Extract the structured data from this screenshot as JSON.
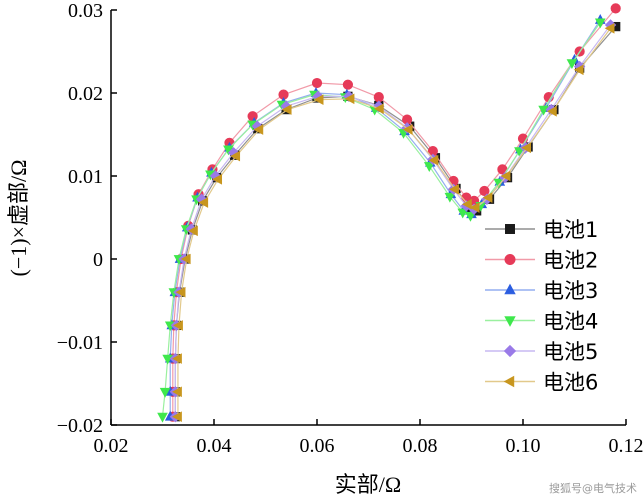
{
  "chart_data": {
    "type": "scatter",
    "title": "",
    "xlabel": "实部/Ω",
    "ylabel": "(−1)×虚部/Ω",
    "xlim": [
      0.02,
      0.12
    ],
    "ylim": [
      -0.02,
      0.03
    ],
    "xticks": [
      "0.02",
      "0.04",
      "0.06",
      "0.08",
      "0.10",
      "0.12"
    ],
    "yticks": [
      "−0.02",
      "−0.01",
      "0",
      "0.01",
      "0.02",
      "0.03"
    ],
    "legend_position": "right",
    "series": [
      {
        "name": "电池1",
        "marker": "square",
        "color": "#1a1a1a",
        "line_color": "#8f8f8f",
        "x": [
          0.0325,
          0.0325,
          0.0325,
          0.0327,
          0.0333,
          0.0344,
          0.0358,
          0.0378,
          0.0405,
          0.044,
          0.0485,
          0.054,
          0.06,
          0.066,
          0.072,
          0.078,
          0.083,
          0.087,
          0.0895,
          0.091,
          0.0935,
          0.097,
          0.101,
          0.106,
          0.111,
          0.118
        ],
        "y": [
          -0.019,
          -0.016,
          -0.012,
          -0.008,
          -0.004,
          0.0,
          0.0035,
          0.007,
          0.0098,
          0.0125,
          0.0157,
          0.018,
          0.0194,
          0.0196,
          0.0185,
          0.016,
          0.0122,
          0.0085,
          0.0062,
          0.0058,
          0.0072,
          0.0098,
          0.0135,
          0.018,
          0.023,
          0.028
        ]
      },
      {
        "name": "电池2",
        "marker": "circle",
        "color": "#e63a58",
        "line_color": "#f19aa8",
        "x": [
          0.032,
          0.032,
          0.032,
          0.0322,
          0.0327,
          0.0336,
          0.035,
          0.037,
          0.0397,
          0.043,
          0.0475,
          0.0535,
          0.06,
          0.066,
          0.072,
          0.0775,
          0.0825,
          0.0865,
          0.089,
          0.0905,
          0.0925,
          0.096,
          0.1,
          0.105,
          0.111,
          0.118
        ],
        "y": [
          -0.019,
          -0.016,
          -0.012,
          -0.008,
          -0.004,
          0.0,
          0.004,
          0.0078,
          0.0108,
          0.014,
          0.0172,
          0.0198,
          0.0212,
          0.021,
          0.0195,
          0.0168,
          0.013,
          0.0094,
          0.0074,
          0.007,
          0.0082,
          0.0108,
          0.0145,
          0.0195,
          0.025,
          0.0302
        ]
      },
      {
        "name": "电池3",
        "marker": "triangle-up",
        "color": "#2b5de0",
        "line_color": "#93aef0",
        "x": [
          0.0315,
          0.0315,
          0.0315,
          0.0318,
          0.0324,
          0.0334,
          0.0348,
          0.0368,
          0.0395,
          0.043,
          0.0478,
          0.0535,
          0.0598,
          0.0658,
          0.0715,
          0.077,
          0.082,
          0.086,
          0.0885,
          0.09,
          0.092,
          0.0955,
          0.0995,
          0.1045,
          0.11,
          0.115
        ],
        "y": [
          -0.019,
          -0.016,
          -0.012,
          -0.008,
          -0.004,
          0.0,
          0.0038,
          0.0074,
          0.0104,
          0.0134,
          0.0164,
          0.0188,
          0.02,
          0.0198,
          0.0182,
          0.0154,
          0.0116,
          0.0078,
          0.0058,
          0.0054,
          0.0066,
          0.0093,
          0.0132,
          0.0182,
          0.024,
          0.0288
        ]
      },
      {
        "name": "电池4",
        "marker": "triangle-down",
        "color": "#3ee84c",
        "line_color": "#9af09f",
        "x": [
          0.03,
          0.0305,
          0.031,
          0.0315,
          0.0322,
          0.0332,
          0.0346,
          0.0366,
          0.0393,
          0.0428,
          0.0475,
          0.0532,
          0.0595,
          0.0655,
          0.0712,
          0.0768,
          0.0818,
          0.0858,
          0.0883,
          0.0898,
          0.0918,
          0.0953,
          0.0993,
          0.104,
          0.1095,
          0.115
        ],
        "y": [
          -0.019,
          -0.016,
          -0.012,
          -0.008,
          -0.004,
          0.0,
          0.0036,
          0.0072,
          0.0102,
          0.0132,
          0.0162,
          0.0186,
          0.0198,
          0.0195,
          0.018,
          0.0152,
          0.0112,
          0.0075,
          0.0056,
          0.0052,
          0.0064,
          0.0092,
          0.013,
          0.018,
          0.0236,
          0.0285
        ]
      },
      {
        "name": "电池5",
        "marker": "diamond",
        "color": "#9a7ae8",
        "line_color": "#c7b8f2",
        "x": [
          0.0325,
          0.0325,
          0.0325,
          0.0327,
          0.0332,
          0.0342,
          0.0356,
          0.0376,
          0.0403,
          0.0438,
          0.0484,
          0.054,
          0.0602,
          0.0662,
          0.072,
          0.0775,
          0.0825,
          0.0865,
          0.089,
          0.0905,
          0.093,
          0.0965,
          0.1005,
          0.1055,
          0.111,
          0.117
        ],
        "y": [
          -0.019,
          -0.016,
          -0.012,
          -0.008,
          -0.004,
          0.0,
          0.0036,
          0.0072,
          0.01,
          0.0128,
          0.016,
          0.0184,
          0.0196,
          0.0196,
          0.0184,
          0.0158,
          0.012,
          0.0084,
          0.0064,
          0.006,
          0.0072,
          0.0098,
          0.0134,
          0.018,
          0.0232,
          0.0282
        ]
      },
      {
        "name": "电池6",
        "marker": "triangle-left",
        "color": "#c8961e",
        "line_color": "#e2c98b",
        "x": [
          0.033,
          0.033,
          0.033,
          0.0332,
          0.0337,
          0.0347,
          0.0361,
          0.0381,
          0.0408,
          0.0443,
          0.0488,
          0.0543,
          0.0605,
          0.0665,
          0.0722,
          0.0778,
          0.0828,
          0.0868,
          0.0893,
          0.0908,
          0.0933,
          0.0968,
          0.1008,
          0.1058,
          0.111,
          0.117
        ],
        "y": [
          -0.019,
          -0.016,
          -0.012,
          -0.008,
          -0.004,
          0.0,
          0.0034,
          0.0068,
          0.0096,
          0.0124,
          0.0156,
          0.018,
          0.0192,
          0.0193,
          0.0181,
          0.0156,
          0.0119,
          0.0084,
          0.0066,
          0.0062,
          0.0074,
          0.01,
          0.0134,
          0.0178,
          0.0228,
          0.0278
        ]
      }
    ]
  },
  "watermark": "搜狐号@电气技术"
}
